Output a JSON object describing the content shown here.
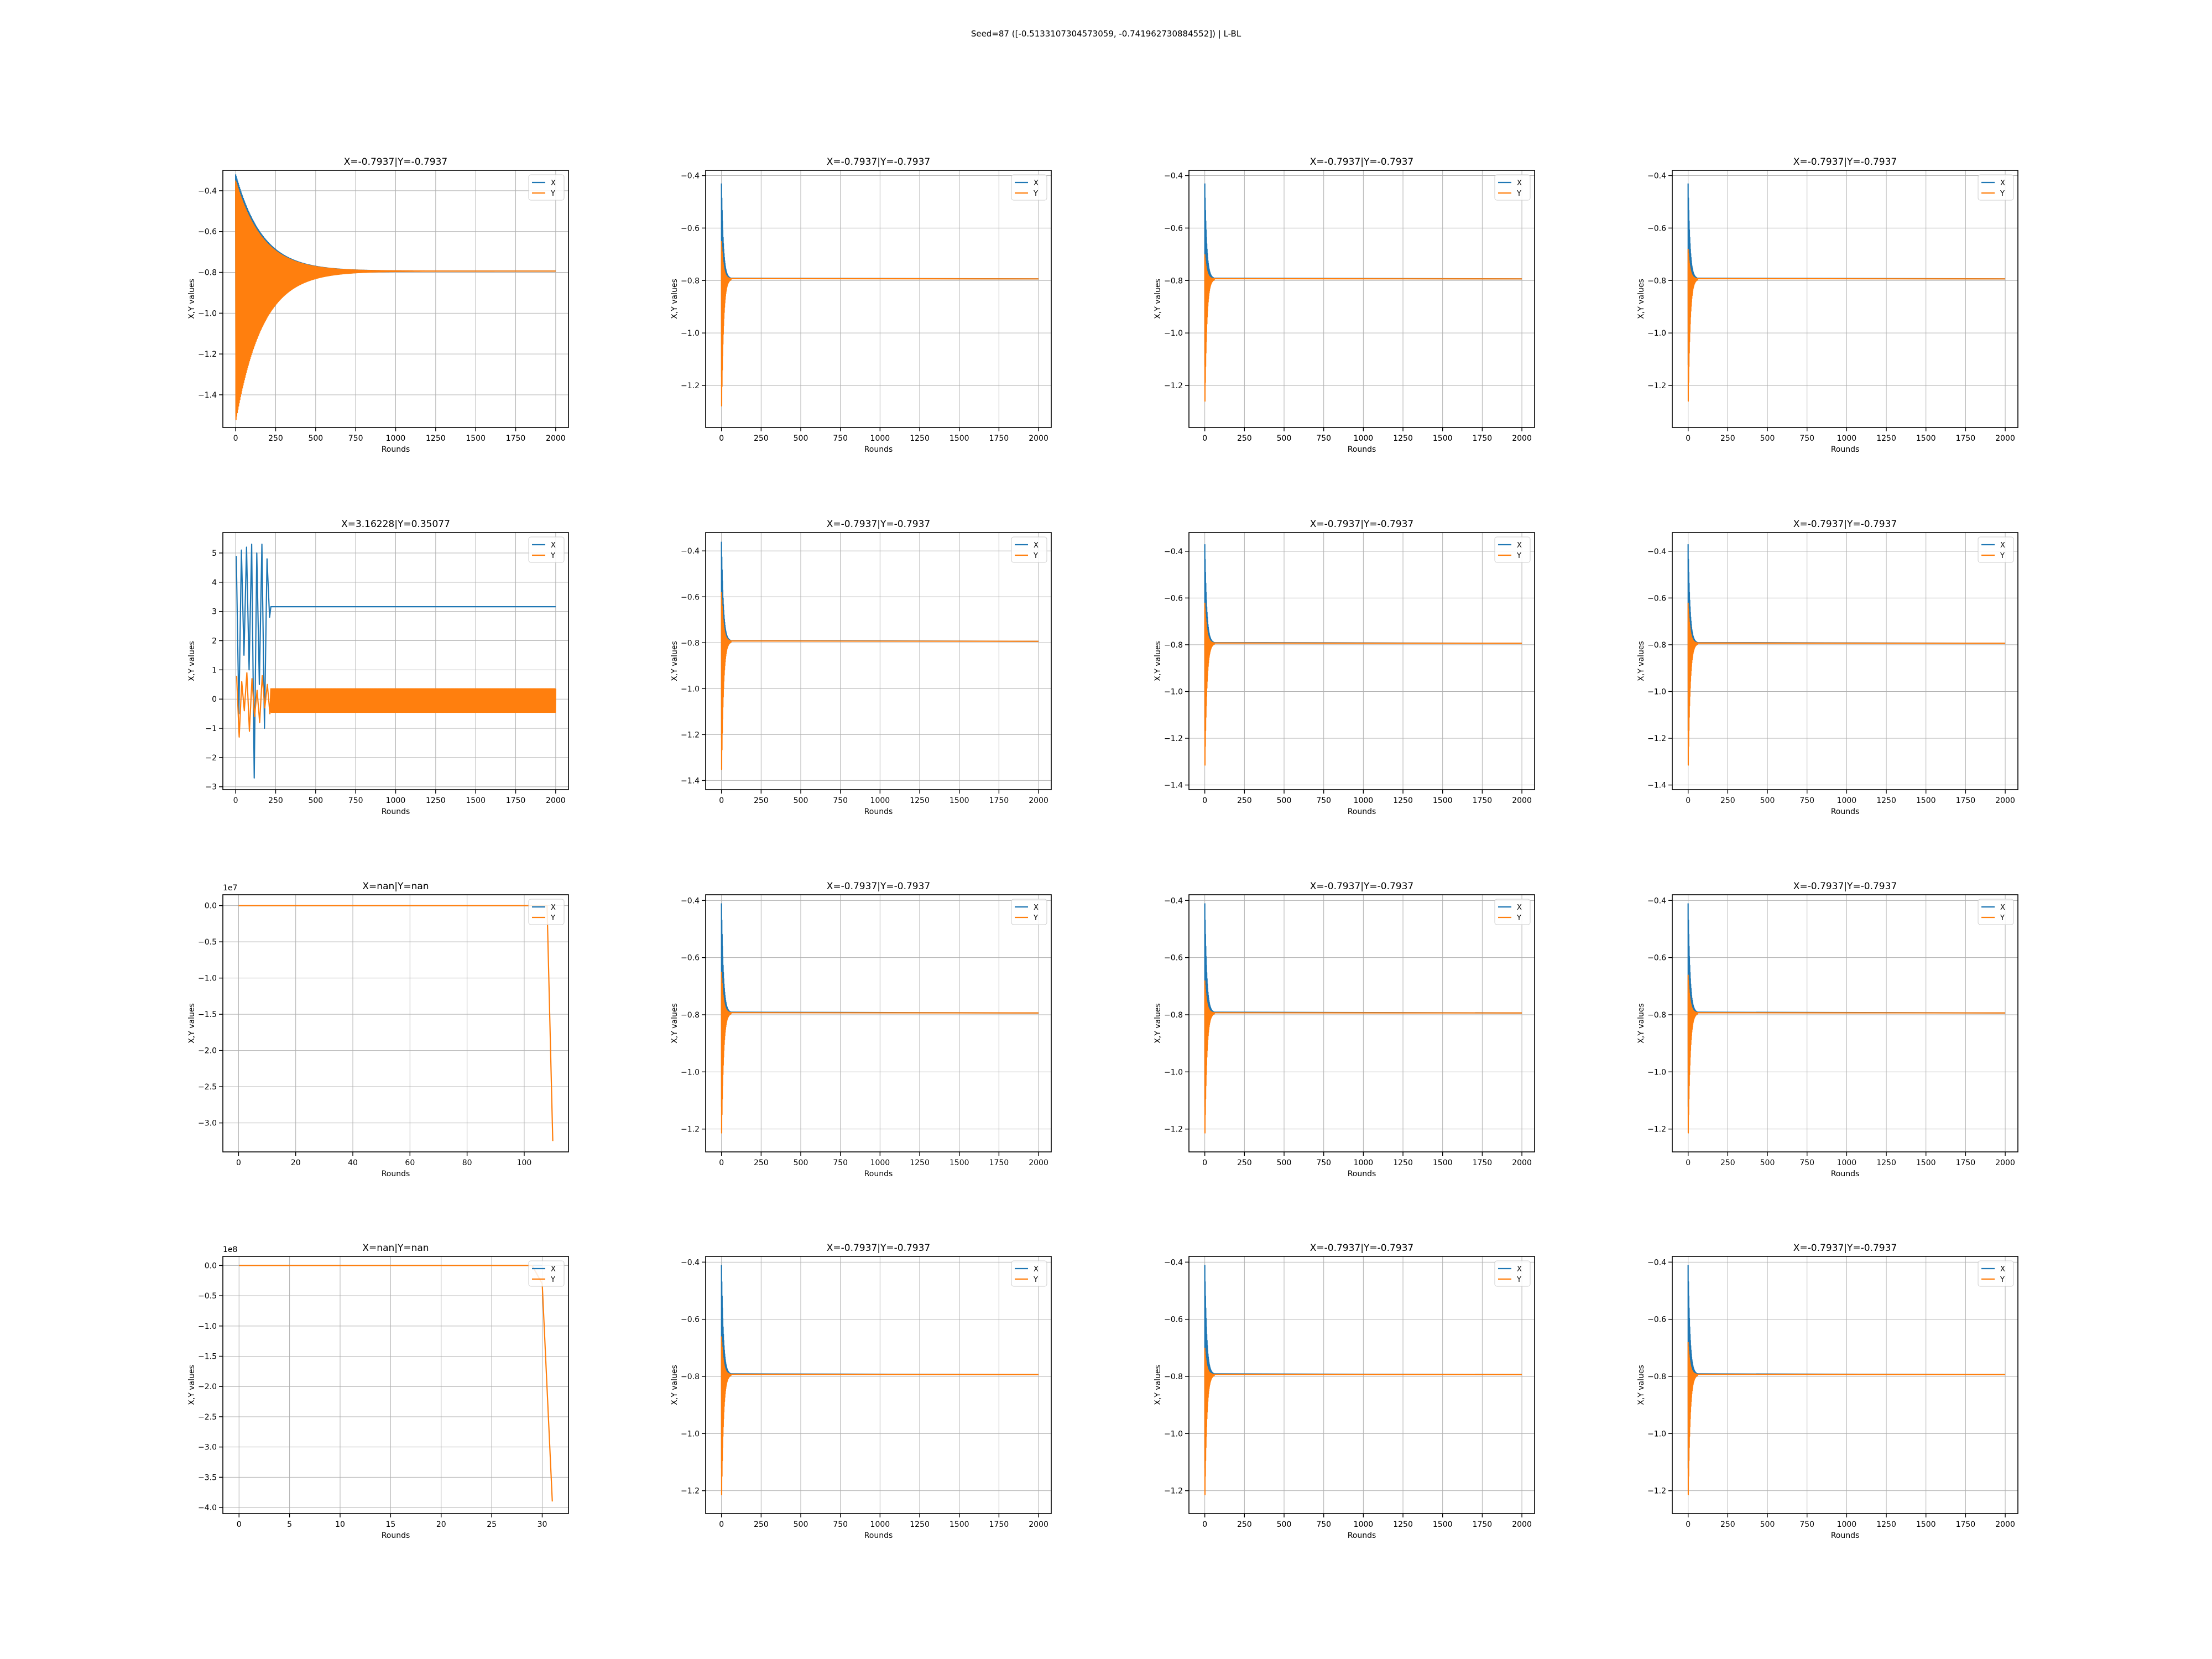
{
  "figure": {
    "suptitle": "Seed=87 ([-0.5133107304573059, -0.741962730884552]) | L-BL",
    "colors": {
      "X": "#1f77b4",
      "Y": "#ff7f0e",
      "grid": "#b0b0b0",
      "axis": "#000000"
    }
  },
  "chart_data": [
    {
      "type": "line",
      "title": "X=-0.7937|Y=-0.7937",
      "xlabel": "Rounds",
      "ylabel": "X,Y values",
      "xlim": [
        -80,
        2080
      ],
      "ylim": [
        -1.56,
        -0.3
      ],
      "xticks": [
        0,
        250,
        500,
        750,
        1000,
        1250,
        1500,
        1750,
        2000
      ],
      "yticks": [
        -1.4,
        -1.2,
        -1.0,
        -0.8,
        -0.6,
        -0.4
      ],
      "grid": true,
      "legend": "top-right",
      "series": [
        {
          "name": "X",
          "env": {
            "final": -0.7937,
            "start_hi": -0.32,
            "start_lo": -1.5,
            "decay_rounds": 750,
            "kind": "damped"
          }
        },
        {
          "name": "Y",
          "env": {
            "final": -0.7937,
            "start_hi": -0.35,
            "start_lo": -1.53,
            "decay_rounds": 750,
            "kind": "damped"
          }
        }
      ]
    },
    {
      "type": "line",
      "title": "X=-0.7937|Y=-0.7937",
      "xlabel": "Rounds",
      "ylabel": "X,Y values",
      "xlim": [
        -100,
        2080
      ],
      "ylim": [
        -1.36,
        -0.38
      ],
      "xticks": [
        0,
        250,
        500,
        750,
        1000,
        1250,
        1500,
        1750,
        2000
      ],
      "yticks": [
        -1.2,
        -1.0,
        -0.8,
        -0.6,
        -0.4
      ],
      "grid": true,
      "legend": "top-right",
      "series": [
        {
          "name": "X",
          "env": {
            "final": -0.7937,
            "start_hi": -0.43,
            "start_lo": -1.2,
            "decay_rounds": 60,
            "kind": "spike"
          }
        },
        {
          "name": "Y",
          "env": {
            "final": -0.7937,
            "start_hi": -0.65,
            "start_lo": -1.32,
            "decay_rounds": 60,
            "kind": "spike"
          }
        }
      ]
    },
    {
      "type": "line",
      "title": "X=-0.7937|Y=-0.7937",
      "xlabel": "Rounds",
      "ylabel": "X,Y values",
      "xlim": [
        -100,
        2080
      ],
      "ylim": [
        -1.36,
        -0.38
      ],
      "xticks": [
        0,
        250,
        500,
        750,
        1000,
        1250,
        1500,
        1750,
        2000
      ],
      "yticks": [
        -1.2,
        -1.0,
        -0.8,
        -0.6,
        -0.4
      ],
      "grid": true,
      "legend": "top-right",
      "series": [
        {
          "name": "X",
          "env": {
            "final": -0.7937,
            "start_hi": -0.43,
            "start_lo": -1.15,
            "decay_rounds": 60,
            "kind": "spike"
          }
        },
        {
          "name": "Y",
          "env": {
            "final": -0.7937,
            "start_hi": -0.7,
            "start_lo": -1.3,
            "decay_rounds": 60,
            "kind": "spike"
          }
        }
      ]
    },
    {
      "type": "line",
      "title": "X=-0.7937|Y=-0.7937",
      "xlabel": "Rounds",
      "ylabel": "X,Y values",
      "xlim": [
        -100,
        2080
      ],
      "ylim": [
        -1.36,
        -0.38
      ],
      "xticks": [
        0,
        250,
        500,
        750,
        1000,
        1250,
        1500,
        1750,
        2000
      ],
      "yticks": [
        -1.2,
        -1.0,
        -0.8,
        -0.6,
        -0.4
      ],
      "grid": true,
      "legend": "top-right",
      "series": [
        {
          "name": "X",
          "env": {
            "final": -0.7937,
            "start_hi": -0.43,
            "start_lo": -1.15,
            "decay_rounds": 60,
            "kind": "spike"
          }
        },
        {
          "name": "Y",
          "env": {
            "final": -0.7937,
            "start_hi": -0.68,
            "start_lo": -1.3,
            "decay_rounds": 60,
            "kind": "spike"
          }
        }
      ]
    },
    {
      "type": "line",
      "title": "X=3.16228|Y=0.35077",
      "xlabel": "Rounds",
      "ylabel": "X,Y values",
      "xlim": [
        -80,
        2080
      ],
      "ylim": [
        -3.1,
        5.7
      ],
      "xticks": [
        0,
        250,
        500,
        750,
        1000,
        1250,
        1500,
        1750,
        2000
      ],
      "yticks": [
        -3,
        -2,
        -1,
        0,
        1,
        2,
        3,
        4,
        5
      ],
      "grid": true,
      "legend": "top-right",
      "series": [
        {
          "name": "X",
          "env": {
            "final": 3.16228,
            "start_hi": 5.3,
            "start_lo": -2.7,
            "decay_rounds": 220,
            "kind": "chaotic"
          }
        },
        {
          "name": "Y",
          "env": {
            "final": 0.35077,
            "band_lo": -0.45,
            "band_hi": 0.35077,
            "start_hi": 0.8,
            "start_lo": -1.3,
            "decay_rounds": 220,
            "kind": "band"
          }
        }
      ]
    },
    {
      "type": "line",
      "title": "X=-0.7937|Y=-0.7937",
      "xlabel": "Rounds",
      "ylabel": "X,Y values",
      "xlim": [
        -100,
        2080
      ],
      "ylim": [
        -1.44,
        -0.32
      ],
      "xticks": [
        0,
        250,
        500,
        750,
        1000,
        1250,
        1500,
        1750,
        2000
      ],
      "yticks": [
        -1.4,
        -1.2,
        -1.0,
        -0.8,
        -0.6,
        -0.4
      ],
      "grid": true,
      "legend": "top-right",
      "series": [
        {
          "name": "X",
          "env": {
            "final": -0.7937,
            "start_hi": -0.36,
            "start_lo": -1.25,
            "decay_rounds": 60,
            "kind": "spike"
          }
        },
        {
          "name": "Y",
          "env": {
            "final": -0.7937,
            "start_hi": -0.58,
            "start_lo": -1.4,
            "decay_rounds": 60,
            "kind": "spike"
          }
        }
      ]
    },
    {
      "type": "line",
      "title": "X=-0.7937|Y=-0.7937",
      "xlabel": "Rounds",
      "ylabel": "X,Y values",
      "xlim": [
        -100,
        2080
      ],
      "ylim": [
        -1.42,
        -0.32
      ],
      "xticks": [
        0,
        250,
        500,
        750,
        1000,
        1250,
        1500,
        1750,
        2000
      ],
      "yticks": [
        -1.4,
        -1.2,
        -1.0,
        -0.8,
        -0.6,
        -0.4
      ],
      "grid": true,
      "legend": "top-right",
      "series": [
        {
          "name": "X",
          "env": {
            "final": -0.7937,
            "start_hi": -0.37,
            "start_lo": -1.2,
            "decay_rounds": 60,
            "kind": "spike"
          }
        },
        {
          "name": "Y",
          "env": {
            "final": -0.7937,
            "start_hi": -0.62,
            "start_lo": -1.36,
            "decay_rounds": 60,
            "kind": "spike"
          }
        }
      ]
    },
    {
      "type": "line",
      "title": "X=-0.7937|Y=-0.7937",
      "xlabel": "Rounds",
      "ylabel": "X,Y values",
      "xlim": [
        -100,
        2080
      ],
      "ylim": [
        -1.42,
        -0.32
      ],
      "xticks": [
        0,
        250,
        500,
        750,
        1000,
        1250,
        1500,
        1750,
        2000
      ],
      "yticks": [
        -1.4,
        -1.2,
        -1.0,
        -0.8,
        -0.6,
        -0.4
      ],
      "grid": true,
      "legend": "top-right",
      "series": [
        {
          "name": "X",
          "env": {
            "final": -0.7937,
            "start_hi": -0.37,
            "start_lo": -1.2,
            "decay_rounds": 60,
            "kind": "spike"
          }
        },
        {
          "name": "Y",
          "env": {
            "final": -0.7937,
            "start_hi": -0.62,
            "start_lo": -1.36,
            "decay_rounds": 60,
            "kind": "spike"
          }
        }
      ]
    },
    {
      "type": "line",
      "title": "X=nan|Y=nan",
      "xlabel": "Rounds",
      "ylabel": "X,Y values",
      "offset_text": "1e7",
      "xlim": [
        -5.5,
        115.5
      ],
      "ylim": [
        -3.4,
        0.15
      ],
      "xticks": [
        0,
        20,
        40,
        60,
        80,
        100
      ],
      "yticks": [
        -3.0,
        -2.5,
        -2.0,
        -1.5,
        -1.0,
        -0.5,
        0.0
      ],
      "ytick_format": "1",
      "grid": true,
      "legend": "top-right",
      "series": [
        {
          "name": "X",
          "x": [
            0,
            108
          ],
          "y": [
            0,
            0
          ]
        },
        {
          "name": "Y",
          "x": [
            0,
            108,
            110
          ],
          "y": [
            0,
            0,
            -3.25
          ]
        }
      ]
    },
    {
      "type": "line",
      "title": "X=-0.7937|Y=-0.7937",
      "xlabel": "Rounds",
      "ylabel": "X,Y values",
      "xlim": [
        -100,
        2080
      ],
      "ylim": [
        -1.28,
        -0.38
      ],
      "xticks": [
        0,
        250,
        500,
        750,
        1000,
        1250,
        1500,
        1750,
        2000
      ],
      "yticks": [
        -1.2,
        -1.0,
        -0.8,
        -0.6,
        -0.4
      ],
      "grid": true,
      "legend": "top-right",
      "series": [
        {
          "name": "X",
          "env": {
            "final": -0.7937,
            "start_hi": -0.41,
            "start_lo": -1.15,
            "decay_rounds": 60,
            "kind": "spike"
          }
        },
        {
          "name": "Y",
          "env": {
            "final": -0.7937,
            "start_hi": -0.65,
            "start_lo": -1.25,
            "decay_rounds": 60,
            "kind": "spike"
          }
        }
      ]
    },
    {
      "type": "line",
      "title": "X=-0.7937|Y=-0.7937",
      "xlabel": "Rounds",
      "ylabel": "X,Y values",
      "xlim": [
        -100,
        2080
      ],
      "ylim": [
        -1.28,
        -0.38
      ],
      "xticks": [
        0,
        250,
        500,
        750,
        1000,
        1250,
        1500,
        1750,
        2000
      ],
      "yticks": [
        -1.2,
        -1.0,
        -0.8,
        -0.6,
        -0.4
      ],
      "grid": true,
      "legend": "top-right",
      "series": [
        {
          "name": "X",
          "env": {
            "final": -0.7937,
            "start_hi": -0.41,
            "start_lo": -1.15,
            "decay_rounds": 60,
            "kind": "spike"
          }
        },
        {
          "name": "Y",
          "env": {
            "final": -0.7937,
            "start_hi": -0.68,
            "start_lo": -1.25,
            "decay_rounds": 60,
            "kind": "spike"
          }
        }
      ]
    },
    {
      "type": "line",
      "title": "X=-0.7937|Y=-0.7937",
      "xlabel": "Rounds",
      "ylabel": "X,Y values",
      "xlim": [
        -100,
        2080
      ],
      "ylim": [
        -1.28,
        -0.38
      ],
      "xticks": [
        0,
        250,
        500,
        750,
        1000,
        1250,
        1500,
        1750,
        2000
      ],
      "yticks": [
        -1.2,
        -1.0,
        -0.8,
        -0.6,
        -0.4
      ],
      "grid": true,
      "legend": "top-right",
      "series": [
        {
          "name": "X",
          "env": {
            "final": -0.7937,
            "start_hi": -0.41,
            "start_lo": -1.15,
            "decay_rounds": 60,
            "kind": "spike"
          }
        },
        {
          "name": "Y",
          "env": {
            "final": -0.7937,
            "start_hi": -0.66,
            "start_lo": -1.25,
            "decay_rounds": 60,
            "kind": "spike"
          }
        }
      ]
    },
    {
      "type": "line",
      "title": "X=nan|Y=nan",
      "xlabel": "Rounds",
      "ylabel": "X,Y values",
      "offset_text": "1e8",
      "xlim": [
        -1.6,
        32.6
      ],
      "ylim": [
        -4.1,
        0.15
      ],
      "xticks": [
        0,
        5,
        10,
        15,
        20,
        25,
        30
      ],
      "yticks": [
        -4.0,
        -3.5,
        -3.0,
        -2.5,
        -2.0,
        -1.5,
        -1.0,
        -0.5,
        0.0
      ],
      "ytick_format": "1",
      "grid": true,
      "legend": "top-right",
      "series": [
        {
          "name": "X",
          "x": [
            0,
            30
          ],
          "y": [
            0,
            0
          ]
        },
        {
          "name": "Y",
          "x": [
            0,
            29,
            30,
            31
          ],
          "y": [
            0,
            0,
            -0.3,
            -3.9
          ]
        }
      ]
    },
    {
      "type": "line",
      "title": "X=-0.7937|Y=-0.7937",
      "xlabel": "Rounds",
      "ylabel": "X,Y values",
      "xlim": [
        -100,
        2080
      ],
      "ylim": [
        -1.28,
        -0.38
      ],
      "xticks": [
        0,
        250,
        500,
        750,
        1000,
        1250,
        1500,
        1750,
        2000
      ],
      "yticks": [
        -1.2,
        -1.0,
        -0.8,
        -0.6,
        -0.4
      ],
      "grid": true,
      "legend": "top-right",
      "series": [
        {
          "name": "X",
          "env": {
            "final": -0.7937,
            "start_hi": -0.41,
            "start_lo": -1.15,
            "decay_rounds": 60,
            "kind": "spike"
          }
        },
        {
          "name": "Y",
          "env": {
            "final": -0.7937,
            "start_hi": -0.66,
            "start_lo": -1.25,
            "decay_rounds": 60,
            "kind": "spike"
          }
        }
      ]
    },
    {
      "type": "line",
      "title": "X=-0.7937|Y=-0.7937",
      "xlabel": "Rounds",
      "ylabel": "X,Y values",
      "xlim": [
        -100,
        2080
      ],
      "ylim": [
        -1.28,
        -0.38
      ],
      "xticks": [
        0,
        250,
        500,
        750,
        1000,
        1250,
        1500,
        1750,
        2000
      ],
      "yticks": [
        -1.2,
        -1.0,
        -0.8,
        -0.6,
        -0.4
      ],
      "grid": true,
      "legend": "top-right",
      "series": [
        {
          "name": "X",
          "env": {
            "final": -0.7937,
            "start_hi": -0.41,
            "start_lo": -1.15,
            "decay_rounds": 60,
            "kind": "spike"
          }
        },
        {
          "name": "Y",
          "env": {
            "final": -0.7937,
            "start_hi": -0.7,
            "start_lo": -1.25,
            "decay_rounds": 60,
            "kind": "spike"
          }
        }
      ]
    },
    {
      "type": "line",
      "title": "X=-0.7937|Y=-0.7937",
      "xlabel": "Rounds",
      "ylabel": "X,Y values",
      "xlim": [
        -100,
        2080
      ],
      "ylim": [
        -1.28,
        -0.38
      ],
      "xticks": [
        0,
        250,
        500,
        750,
        1000,
        1250,
        1500,
        1750,
        2000
      ],
      "yticks": [
        -1.2,
        -1.0,
        -0.8,
        -0.6,
        -0.4
      ],
      "grid": true,
      "legend": "top-right",
      "series": [
        {
          "name": "X",
          "env": {
            "final": -0.7937,
            "start_hi": -0.41,
            "start_lo": -1.15,
            "decay_rounds": 60,
            "kind": "spike"
          }
        },
        {
          "name": "Y",
          "env": {
            "final": -0.7937,
            "start_hi": -0.68,
            "start_lo": -1.25,
            "decay_rounds": 60,
            "kind": "spike"
          }
        }
      ]
    }
  ]
}
